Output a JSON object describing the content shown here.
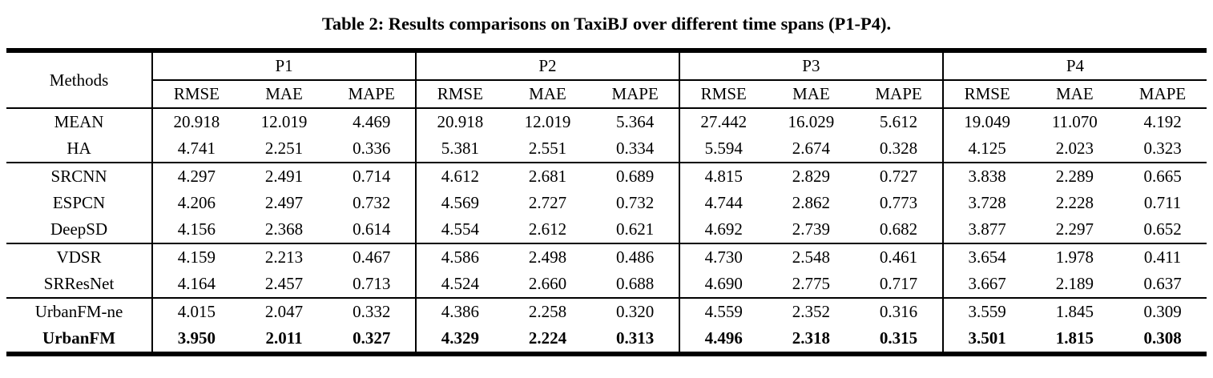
{
  "title": "Table 2: Results comparisons on TaxiBJ over different time spans (P1-P4).",
  "table": {
    "methods_header": "Methods",
    "groups": [
      "P1",
      "P2",
      "P3",
      "P4"
    ],
    "metrics": [
      "RMSE",
      "MAE",
      "MAPE"
    ],
    "row_groups": [
      {
        "rows": [
          {
            "method": "MEAN",
            "bold": false,
            "values": [
              "20.918",
              "12.019",
              "4.469",
              "20.918",
              "12.019",
              "5.364",
              "27.442",
              "16.029",
              "5.612",
              "19.049",
              "11.070",
              "4.192"
            ]
          },
          {
            "method": "HA",
            "bold": false,
            "values": [
              "4.741",
              "2.251",
              "0.336",
              "5.381",
              "2.551",
              "0.334",
              "5.594",
              "2.674",
              "0.328",
              "4.125",
              "2.023",
              "0.323"
            ]
          }
        ]
      },
      {
        "rows": [
          {
            "method": "SRCNN",
            "bold": false,
            "values": [
              "4.297",
              "2.491",
              "0.714",
              "4.612",
              "2.681",
              "0.689",
              "4.815",
              "2.829",
              "0.727",
              "3.838",
              "2.289",
              "0.665"
            ]
          },
          {
            "method": "ESPCN",
            "bold": false,
            "values": [
              "4.206",
              "2.497",
              "0.732",
              "4.569",
              "2.727",
              "0.732",
              "4.744",
              "2.862",
              "0.773",
              "3.728",
              "2.228",
              "0.711"
            ]
          },
          {
            "method": "DeepSD",
            "bold": false,
            "values": [
              "4.156",
              "2.368",
              "0.614",
              "4.554",
              "2.612",
              "0.621",
              "4.692",
              "2.739",
              "0.682",
              "3.877",
              "2.297",
              "0.652"
            ]
          }
        ]
      },
      {
        "rows": [
          {
            "method": "VDSR",
            "bold": false,
            "values": [
              "4.159",
              "2.213",
              "0.467",
              "4.586",
              "2.498",
              "0.486",
              "4.730",
              "2.548",
              "0.461",
              "3.654",
              "1.978",
              "0.411"
            ]
          },
          {
            "method": "SRResNet",
            "bold": false,
            "values": [
              "4.164",
              "2.457",
              "0.713",
              "4.524",
              "2.660",
              "0.688",
              "4.690",
              "2.775",
              "0.717",
              "3.667",
              "2.189",
              "0.637"
            ]
          }
        ]
      },
      {
        "rows": [
          {
            "method": "UrbanFM-ne",
            "bold": false,
            "values": [
              "4.015",
              "2.047",
              "0.332",
              "4.386",
              "2.258",
              "0.320",
              "4.559",
              "2.352",
              "0.316",
              "3.559",
              "1.845",
              "0.309"
            ]
          },
          {
            "method": "UrbanFM",
            "bold": true,
            "values": [
              "3.950",
              "2.011",
              "0.327",
              "4.329",
              "2.224",
              "0.313",
              "4.496",
              "2.318",
              "0.315",
              "3.501",
              "1.815",
              "0.308"
            ]
          }
        ]
      }
    ]
  }
}
